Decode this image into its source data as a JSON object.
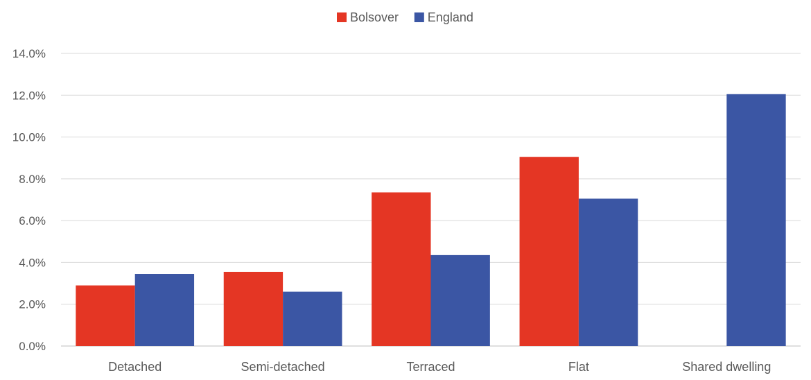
{
  "chart_data": {
    "type": "bar",
    "categories": [
      "Detached",
      "Semi-detached",
      "Terraced",
      "Flat",
      "Shared dwelling"
    ],
    "series": [
      {
        "name": "Bolsover",
        "color": "#e43624",
        "values": [
          2.9,
          3.55,
          7.35,
          9.05,
          null
        ]
      },
      {
        "name": "England",
        "color": "#3b56a4",
        "values": [
          3.45,
          2.6,
          4.35,
          7.05,
          12.05
        ]
      }
    ],
    "y_ticks": [
      "0.0%",
      "2.0%",
      "4.0%",
      "6.0%",
      "8.0%",
      "10.0%",
      "12.0%",
      "14.0%"
    ],
    "ylim": [
      0,
      14
    ],
    "y_unit": "%",
    "grid": true,
    "legend_position": "top-center",
    "title": "",
    "xlabel": "",
    "ylabel": ""
  }
}
